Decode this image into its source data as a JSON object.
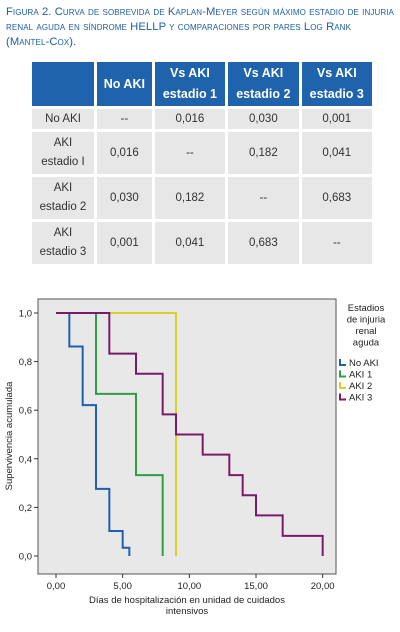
{
  "caption": {
    "figure_label": "Figura 2.",
    "text": "Curva de sobrevida de Kaplan-Meyer según máximo estadio de injuria renal aguda en síndrome HELLP y comparaciones por pares Log Rank (Mantel-Cox)."
  },
  "table": {
    "headers": [
      "",
      "No AKI",
      "Vs AKI estadio 1",
      "Vs AKI estadio 2",
      "Vs AKI estadio 3"
    ],
    "rows": [
      {
        "label": "No AKI",
        "cells": [
          "--",
          "0,016",
          "0,030",
          "0,001"
        ]
      },
      {
        "label": "AKI estadio I",
        "cells": [
          "0,016",
          "--",
          "0,182",
          "0,041"
        ]
      },
      {
        "label": "AKI estadio 2",
        "cells": [
          "0,030",
          "0,182",
          "--",
          "0,683"
        ]
      },
      {
        "label": "AKI estadio 3",
        "cells": [
          "0,001",
          "0,041",
          "0,683",
          "--"
        ]
      }
    ]
  },
  "chart_data": {
    "type": "line",
    "step": true,
    "xlabel": "Días de hospitalización en unidad de cuidados intensivos",
    "ylabel": "Supervivencia acumulada",
    "xlim": [
      0,
      21
    ],
    "ylim": [
      0,
      1
    ],
    "xticks": [
      0,
      5,
      10,
      15,
      20
    ],
    "xtick_labels": [
      "0,00",
      "5,00",
      "10,00",
      "15,00",
      "20,00"
    ],
    "yticks": [
      0,
      0.2,
      0.4,
      0.6,
      0.8,
      1.0
    ],
    "ytick_labels": [
      "0,0",
      "0,2",
      "0,4",
      "0,6",
      "0,8",
      "1,0"
    ],
    "grid": false,
    "legend_title": "Estadios de injuria renal aguda",
    "legend_position": "right",
    "background": "#e8e8e8",
    "series": [
      {
        "name": "No AKI",
        "color": "#1f5fb0",
        "x": [
          0,
          1,
          2,
          3,
          4,
          5,
          5.5
        ],
        "y": [
          1.0,
          0.862,
          0.621,
          0.276,
          0.103,
          0.034,
          0.0
        ]
      },
      {
        "name": "AKI 1",
        "color": "#2e9e45",
        "x": [
          0,
          3,
          6,
          8
        ],
        "y": [
          1.0,
          0.667,
          0.333,
          0.0
        ]
      },
      {
        "name": "AKI 2",
        "color": "#d6d027",
        "x": [
          0,
          9
        ],
        "y": [
          1.0,
          0.0
        ]
      },
      {
        "name": "AKI 3",
        "color": "#7a1a6b",
        "x": [
          0,
          4,
          6,
          8,
          9,
          11,
          13,
          14,
          15,
          17,
          20
        ],
        "y": [
          1.0,
          0.833,
          0.75,
          0.583,
          0.5,
          0.417,
          0.333,
          0.25,
          0.167,
          0.083,
          0.0
        ]
      }
    ]
  }
}
